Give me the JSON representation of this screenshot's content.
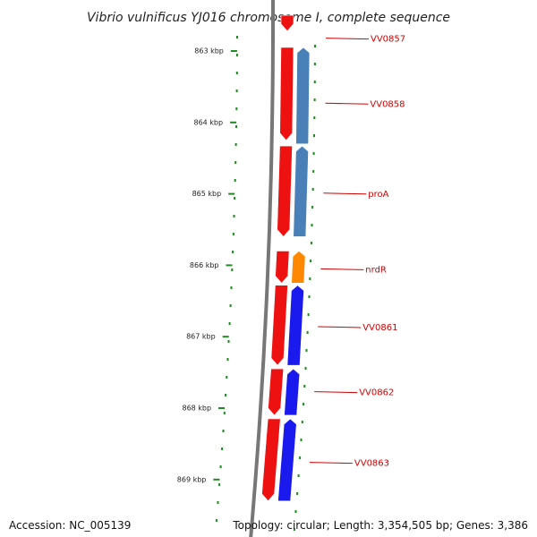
{
  "title": "Vibrio vulnificus YJ016 chromosome I, complete sequence",
  "accession": "Accession: NC_005139",
  "topology": "Topology: circular; Length: 3,354,505 bp; Genes: 3,386",
  "scale": {
    "ticks": [
      {
        "kbp": 863,
        "label": "863 kbp"
      },
      {
        "kbp": 864,
        "label": "864 kbp"
      },
      {
        "kbp": 865,
        "label": "865 kbp"
      },
      {
        "kbp": 866,
        "label": "866 kbp"
      },
      {
        "kbp": 867,
        "label": "867 kbp"
      },
      {
        "kbp": 868,
        "label": "868 kbp"
      },
      {
        "kbp": 869,
        "label": "869 kbp"
      }
    ]
  },
  "gene_labels": [
    {
      "text": "VV0857",
      "kbp": 862.82
    },
    {
      "text": "VV0858",
      "kbp": 863.73
    },
    {
      "text": "proA",
      "kbp": 864.99
    },
    {
      "text": "nrdR",
      "kbp": 866.05
    },
    {
      "text": "VV0861",
      "kbp": 866.86
    },
    {
      "text": "VV0862",
      "kbp": 867.77
    },
    {
      "text": "VV0863",
      "kbp": 868.76
    }
  ],
  "tracks": {
    "forward_color": "#ee1111",
    "reverse_colors": {
      "cog_blue": "#3366dd",
      "steel_blue": "#4a80b8",
      "orange": "#ff8800"
    },
    "backbone_color": "#777777",
    "dot_color": "#228822",
    "label_color": "#d40000"
  },
  "features": [
    {
      "track": "forward",
      "start": 862.5,
      "end": 862.72,
      "color": "#ee1111"
    },
    {
      "track": "forward",
      "start": 862.95,
      "end": 864.25,
      "color": "#ee1111"
    },
    {
      "track": "forward",
      "start": 864.33,
      "end": 865.6,
      "color": "#ee1111"
    },
    {
      "track": "forward",
      "start": 865.8,
      "end": 866.25,
      "color": "#ee1111"
    },
    {
      "track": "forward",
      "start": 866.28,
      "end": 867.4,
      "color": "#ee1111"
    },
    {
      "track": "forward",
      "start": 867.45,
      "end": 868.1,
      "color": "#ee1111"
    },
    {
      "track": "forward",
      "start": 868.15,
      "end": 869.3,
      "color": "#ee1111"
    },
    {
      "track": "reverse",
      "start": 862.95,
      "end": 864.3,
      "color": "#4a80b8"
    },
    {
      "track": "reverse",
      "start": 864.33,
      "end": 865.6,
      "color": "#4a80b8"
    },
    {
      "track": "reverse",
      "start": 865.8,
      "end": 866.25,
      "color": "#ff8800"
    },
    {
      "track": "reverse",
      "start": 866.28,
      "end": 867.4,
      "color": "#1a1aee"
    },
    {
      "track": "reverse",
      "start": 867.45,
      "end": 868.1,
      "color": "#1a1aee"
    },
    {
      "track": "reverse",
      "start": 868.15,
      "end": 869.3,
      "color": "#1a1aee"
    }
  ]
}
